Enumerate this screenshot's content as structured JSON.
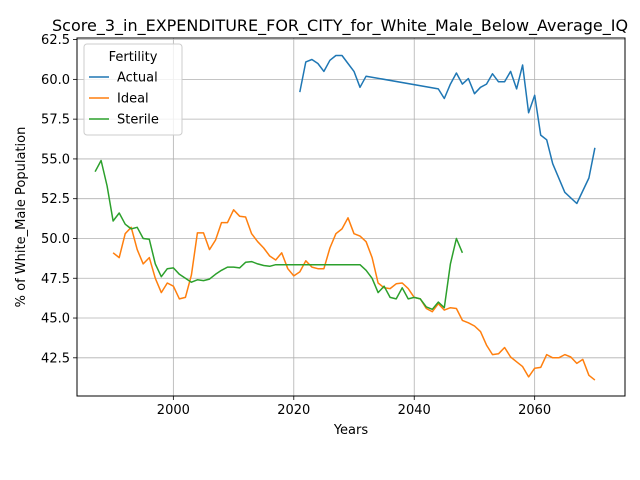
{
  "chart_data": {
    "type": "line",
    "title": "Score_3_in_EXPENDITURE_FOR_CITY_for_White_Male_Below_Average_IQ",
    "xlabel": "Years",
    "ylabel": "% of White_Male Population",
    "xlim": [
      1984,
      2075
    ],
    "ylim": [
      40.1,
      62.6
    ],
    "x_ticks": [
      2000,
      2020,
      2040,
      2060
    ],
    "y_ticks": [
      42.5,
      45.0,
      47.5,
      50.0,
      52.5,
      55.0,
      57.5,
      60.0,
      62.5
    ],
    "x_tick_labels": [
      "2000",
      "2020",
      "2040",
      "2060"
    ],
    "y_tick_labels": [
      "42.5",
      "45.0",
      "47.5",
      "50.0",
      "52.5",
      "55.0",
      "57.5",
      "60.0",
      "62.5"
    ],
    "grid": true,
    "legend": {
      "title": "Fertility",
      "placement": "upper-left",
      "entries": [
        "Actual",
        "Ideal",
        "Sterile"
      ]
    },
    "series": [
      {
        "name": "Actual",
        "color": "#1f77b4",
        "x": [
          2021,
          2022,
          2023,
          2024,
          2025,
          2026,
          2027,
          2028,
          2029,
          2030,
          2031,
          2032,
          2044,
          2045,
          2046,
          2047,
          2048,
          2049,
          2050,
          2051,
          2052,
          2053,
          2054,
          2055,
          2056,
          2057,
          2058,
          2059,
          2060,
          2061,
          2062,
          2063,
          2065,
          2067,
          2069,
          2070
        ],
        "y": [
          59.2,
          61.1,
          61.25,
          61.0,
          60.5,
          61.2,
          61.5,
          61.5,
          61.0,
          60.5,
          59.5,
          60.2,
          59.4,
          58.8,
          59.7,
          60.4,
          59.7,
          60.05,
          59.1,
          59.5,
          59.7,
          60.35,
          59.85,
          59.85,
          60.5,
          59.4,
          60.9,
          57.9,
          59.0,
          56.5,
          56.2,
          54.7,
          52.9,
          52.2,
          53.8,
          55.7
        ]
      },
      {
        "name": "Ideal",
        "color": "#ff7f0e",
        "x": [
          1990,
          1991,
          1992,
          1993,
          1994,
          1995,
          1996,
          1997,
          1998,
          1999,
          2000,
          2001,
          2002,
          2003,
          2004,
          2005,
          2006,
          2007,
          2008,
          2009,
          2010,
          2011,
          2012,
          2013,
          2014,
          2015,
          2016,
          2017,
          2018,
          2019,
          2020,
          2021,
          2022,
          2023,
          2024,
          2025,
          2026,
          2027,
          2028,
          2029,
          2030,
          2031,
          2032,
          2033,
          2034,
          2035,
          2036,
          2037,
          2038,
          2039,
          2040,
          2041,
          2042,
          2043,
          2044,
          2045,
          2046,
          2047,
          2048,
          2049,
          2050,
          2051,
          2052,
          2053,
          2054,
          2055,
          2056,
          2057,
          2058,
          2059,
          2060,
          2061,
          2062,
          2063,
          2064,
          2065,
          2066,
          2067,
          2068,
          2069,
          2070
        ],
        "y": [
          49.1,
          48.8,
          50.3,
          50.7,
          49.3,
          48.4,
          48.8,
          47.5,
          46.6,
          47.2,
          47.0,
          46.2,
          46.3,
          47.7,
          50.35,
          50.35,
          49.3,
          49.9,
          51.0,
          51.0,
          51.8,
          51.4,
          51.35,
          50.3,
          49.8,
          49.4,
          48.9,
          48.65,
          49.1,
          48.1,
          47.65,
          47.9,
          48.6,
          48.2,
          48.1,
          48.1,
          49.4,
          50.3,
          50.6,
          51.3,
          50.3,
          50.15,
          49.8,
          48.8,
          47.2,
          46.9,
          46.85,
          47.15,
          47.2,
          46.85,
          46.3,
          46.2,
          45.6,
          45.4,
          45.9,
          45.5,
          45.65,
          45.6,
          44.85,
          44.7,
          44.5,
          44.15,
          43.3,
          42.7,
          42.75,
          43.15,
          42.55,
          42.25,
          41.95,
          41.3,
          41.85,
          41.9,
          42.7,
          42.5,
          42.5,
          42.7,
          42.55,
          42.15,
          42.4,
          41.4,
          41.1
        ]
      },
      {
        "name": "Sterile",
        "color": "#2ca02c",
        "x": [
          1987,
          1988,
          1989,
          1990,
          1991,
          1992,
          1993,
          1994,
          1995,
          1996,
          1997,
          1998,
          1999,
          2000,
          2001,
          2002,
          2003,
          2004,
          2005,
          2006,
          2007,
          2008,
          2009,
          2010,
          2011,
          2012,
          2013,
          2014,
          2015,
          2016,
          2017,
          2018,
          2019,
          2020,
          2021,
          2022,
          2023,
          2024,
          2025,
          2026,
          2027,
          2028,
          2029,
          2030,
          2031,
          2032,
          2033,
          2034,
          2035,
          2036,
          2037,
          2038,
          2039,
          2040,
          2041,
          2042,
          2043,
          2044,
          2045,
          2046,
          2047,
          2048
        ],
        "y": [
          54.2,
          54.9,
          53.3,
          51.1,
          51.6,
          50.9,
          50.6,
          50.7,
          50.0,
          49.95,
          48.4,
          47.6,
          48.1,
          48.15,
          47.75,
          47.5,
          47.25,
          47.4,
          47.35,
          47.45,
          47.75,
          48.0,
          48.2,
          48.2,
          48.15,
          48.5,
          48.55,
          48.4,
          48.3,
          48.25,
          48.35,
          48.35,
          48.35,
          48.35,
          48.35,
          48.35,
          48.35,
          48.35,
          48.35,
          48.35,
          48.35,
          48.35,
          48.35,
          48.35,
          48.35,
          48.0,
          47.5,
          46.6,
          47.0,
          46.3,
          46.2,
          46.9,
          46.2,
          46.3,
          46.2,
          45.7,
          45.55,
          46.0,
          45.65,
          48.4,
          50.0,
          49.1
        ]
      }
    ]
  }
}
